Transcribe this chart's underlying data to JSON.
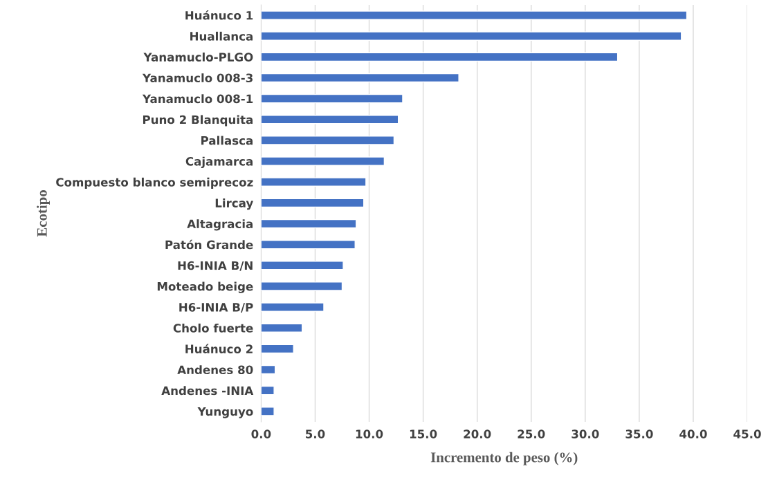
{
  "chart_data": {
    "type": "bar",
    "orientation": "horizontal",
    "xlabel": "Incremento de peso (%)",
    "ylabel": "Ecotipo",
    "categories": [
      "Huánuco 1",
      "Huallanca",
      "Yanamuclo-PLGO",
      "Yanamuclo 008-3",
      "Yanamuclo 008-1",
      "Puno 2 Blanquita",
      "Pallasca",
      "Cajamarca",
      "Compuesto blanco semiprecoz",
      "Lircay",
      "Altagracia",
      "Patón Grande",
      "H6-INIA B/N",
      "Moteado beige",
      "H6-INIA B/P",
      "Cholo fuerte",
      "Huánuco 2",
      "Andenes 80",
      "Andenes -INIA",
      "Yunguyo"
    ],
    "values": [
      39.4,
      38.9,
      33.0,
      18.3,
      13.1,
      12.7,
      12.3,
      11.4,
      9.7,
      9.5,
      8.8,
      8.7,
      7.6,
      7.5,
      5.8,
      3.8,
      3.0,
      1.3,
      1.2,
      1.2
    ],
    "color": "#4472c4",
    "xlim": [
      0,
      45
    ],
    "xticks": [
      {
        "value": 0,
        "label": "0.0"
      },
      {
        "value": 5,
        "label": "5.0"
      },
      {
        "value": 10,
        "label": "10.0"
      },
      {
        "value": 15,
        "label": "15.0"
      },
      {
        "value": 20,
        "label": "20.0"
      },
      {
        "value": 25,
        "label": "25.0"
      },
      {
        "value": 30,
        "label": "30.0"
      },
      {
        "value": 35,
        "label": "35.0"
      },
      {
        "value": 40,
        "label": "40.0"
      },
      {
        "value": 45,
        "label": "45.0"
      }
    ],
    "grid": "x",
    "legend": false
  }
}
